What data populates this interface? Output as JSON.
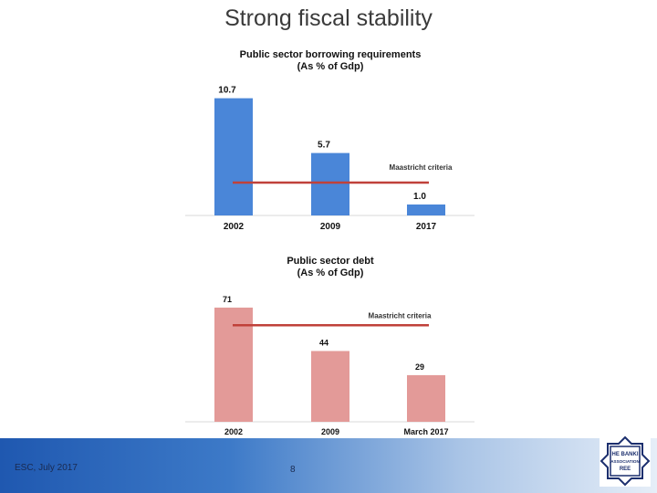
{
  "slide": {
    "title": "Strong fiscal stability"
  },
  "footer": {
    "left_text": "ESC, July 2017",
    "page_number": "8"
  },
  "logo": {
    "line1": "HE BANKI",
    "line2": "ASSOCIATION",
    "line3": "REE"
  },
  "colors": {
    "bar_blue": "#4a86d8",
    "bar_red": "#e39a98",
    "criteria_line": "#c0413a",
    "footer_blue": "#2a63b8"
  },
  "chart_data": [
    {
      "type": "bar",
      "title": "Public sector borrowing requirements",
      "subtitle": "(As % of Gdp)",
      "categories": [
        "2002",
        "2009",
        "2017"
      ],
      "values": [
        10.7,
        5.7,
        1.0
      ],
      "value_labels": [
        "10.7",
        "5.7",
        "1.0"
      ],
      "reference_line": {
        "label": "Maastricht criteria",
        "value": 3.0
      },
      "ylim": [
        0,
        12.5
      ],
      "xlabel": "",
      "ylabel": ""
    },
    {
      "type": "bar",
      "title": "Public sector debt",
      "subtitle": "(As % of Gdp)",
      "categories": [
        "2002",
        "2009",
        "March 2017"
      ],
      "values": [
        71,
        44,
        29
      ],
      "value_labels": [
        "71",
        "44",
        "29"
      ],
      "reference_line": {
        "label": "Maastricht criteria",
        "value": 60
      },
      "ylim": [
        0,
        84
      ],
      "xlabel": "",
      "ylabel": ""
    }
  ]
}
